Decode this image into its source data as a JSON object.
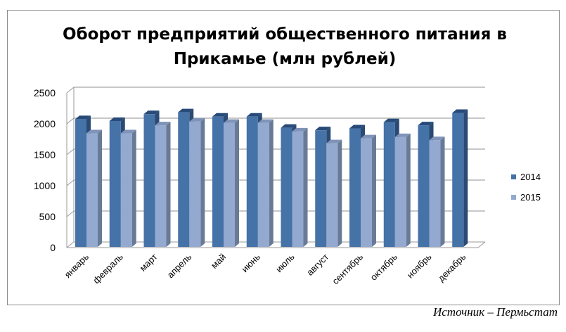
{
  "chart_data": {
    "type": "bar",
    "title": "Оборот предприятий общественного питания в Прикамье (млн рублей)",
    "xlabel": "",
    "ylabel": "",
    "categories": [
      "январь",
      "февраль",
      "март",
      "апрель",
      "май",
      "июнь",
      "июль",
      "август",
      "сентябрь",
      "октябрь",
      "ноябрь",
      "декабрь"
    ],
    "series": [
      {
        "name": "2014",
        "color": "#4572a7",
        "values": [
          2110,
          2080,
          2190,
          2220,
          2150,
          2150,
          1970,
          1930,
          1960,
          2060,
          2010,
          2210
        ]
      },
      {
        "name": "2015",
        "color": "#93a9cf",
        "values": [
          1880,
          1880,
          2010,
          2070,
          2050,
          2050,
          1910,
          1720,
          1800,
          1820,
          1770,
          null
        ]
      }
    ],
    "ylim": [
      0,
      2500
    ],
    "yticks": [
      0,
      500,
      1000,
      1500,
      2000,
      2500
    ],
    "grid": true,
    "legend": "right"
  },
  "source": "Источник – Пермьстат"
}
